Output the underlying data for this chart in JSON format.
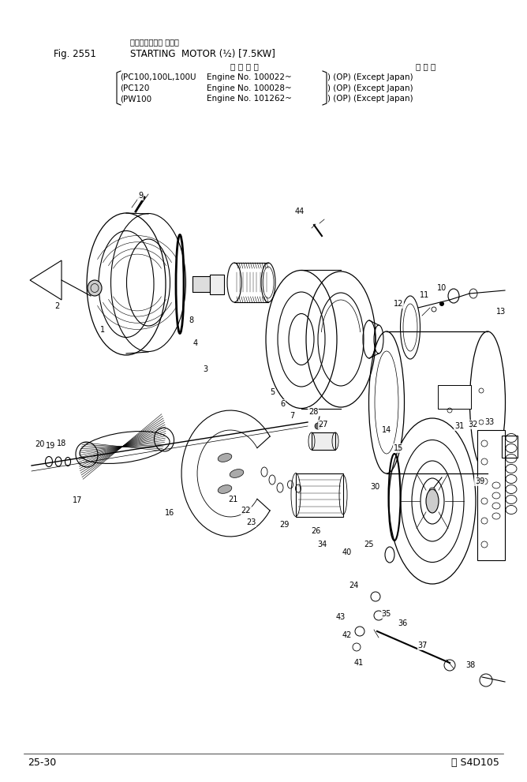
{
  "title_japanese": "スターティング モータ",
  "title_english": "STARTING  MOTOR (½) [7.5KW]",
  "fig_label": "Fig. 2551",
  "header_col1": "適 用 号 機",
  "header_col2": "海 外 向",
  "rows": [
    [
      "(PC100,100L,100U",
      "Engine No. 100022~",
      ") (OP) (Except Japan)"
    ],
    [
      "(PC120",
      "Engine No. 100028~",
      ") (OP) (Except Japan)"
    ],
    [
      "(PW100",
      "Engine No. 101262~",
      ") (OP) (Except Japan)"
    ]
  ],
  "page_label": "25-30",
  "model_label": "Ⓢ S4D105",
  "bg_color": "#ffffff",
  "fg_color": "#000000"
}
